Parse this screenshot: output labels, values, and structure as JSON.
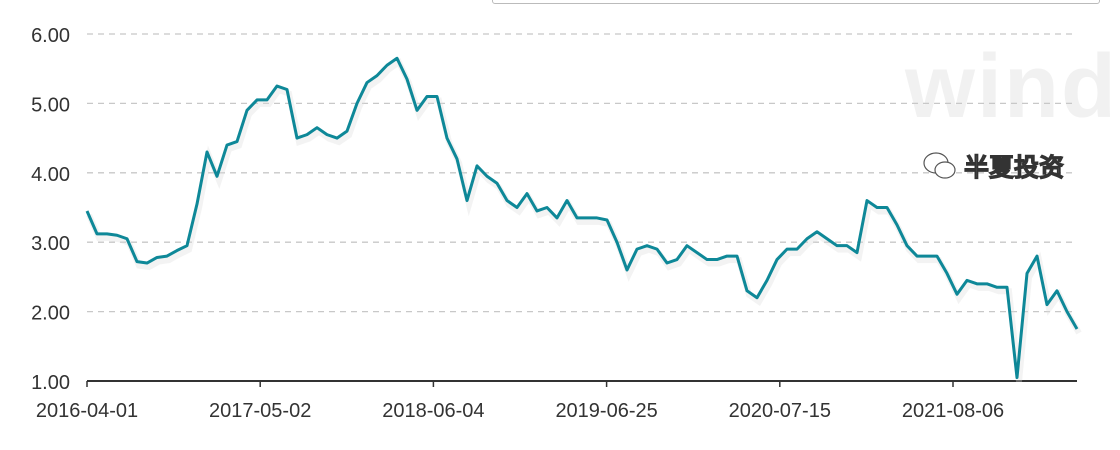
{
  "chart_data": {
    "type": "line",
    "x_start": "2016-04-01",
    "x_tick_labels": [
      "2016-04-01",
      "2017-05-02",
      "2018-06-04",
      "2019-06-25",
      "2020-07-15",
      "2021-08-06"
    ],
    "y_tick_labels": [
      "1.00",
      "2.00",
      "3.00",
      "4.00",
      "5.00",
      "6.00"
    ],
    "ylim": [
      1,
      6
    ],
    "grid": "horizontal dashed",
    "line_color": "#0e8898",
    "values": [
      3.45,
      3.12,
      3.12,
      3.1,
      3.05,
      2.72,
      2.7,
      2.78,
      2.8,
      2.88,
      2.95,
      3.55,
      4.3,
      3.95,
      4.4,
      4.45,
      4.9,
      5.05,
      5.05,
      5.25,
      5.2,
      4.5,
      4.55,
      4.65,
      4.55,
      4.5,
      4.6,
      5.0,
      5.3,
      5.4,
      5.55,
      5.65,
      5.35,
      4.9,
      5.1,
      5.1,
      4.5,
      4.2,
      3.6,
      4.1,
      3.95,
      3.85,
      3.6,
      3.5,
      3.7,
      3.45,
      3.5,
      3.35,
      3.6,
      3.35,
      3.35,
      3.35,
      3.32,
      3.0,
      2.6,
      2.9,
      2.95,
      2.9,
      2.7,
      2.75,
      2.95,
      2.85,
      2.75,
      2.75,
      2.8,
      2.8,
      2.3,
      2.2,
      2.45,
      2.75,
      2.9,
      2.9,
      3.05,
      3.15,
      3.05,
      2.95,
      2.95,
      2.85,
      3.6,
      3.5,
      3.5,
      3.25,
      2.95,
      2.8,
      2.8,
      2.8,
      2.55,
      2.25,
      2.45,
      2.4,
      2.4,
      2.35,
      2.35,
      1.05,
      2.55,
      2.8,
      2.1,
      2.3,
      2.0,
      1.75
    ]
  },
  "watermark": {
    "text": "半夏投资",
    "brand": "wind"
  }
}
